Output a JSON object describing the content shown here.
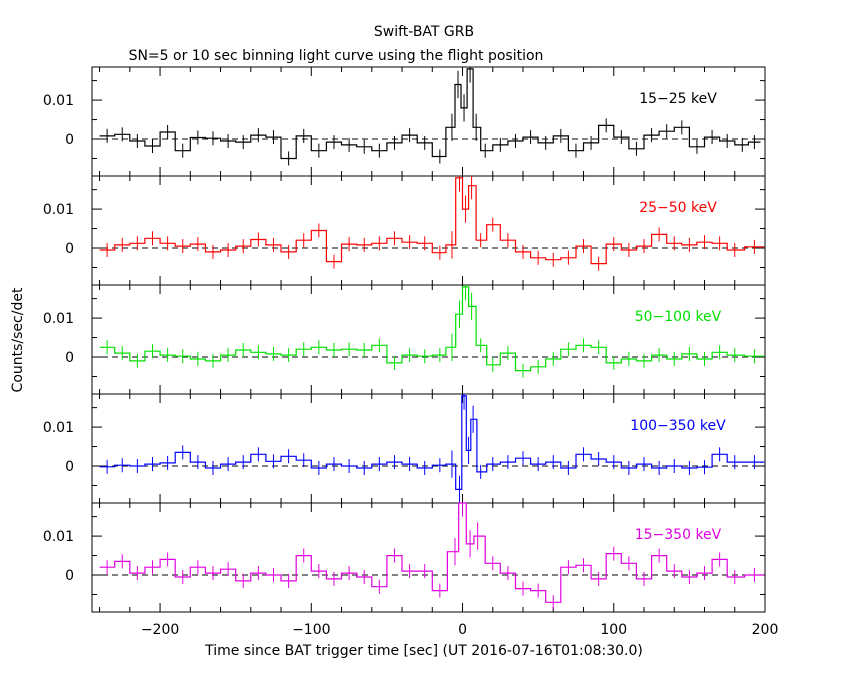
{
  "header": {
    "title": "Swift-BAT GRB",
    "subtitle": "SN=5 or 10 sec binning light curve using the flight position"
  },
  "chart_data": {
    "type": "line",
    "style": "step",
    "title": "Swift-BAT GRB",
    "subtitle": "SN=5 or 10 sec binning light curve using the flight position",
    "xlabel": "Time since BAT trigger time [sec] (UT 2016-07-16T01:08:30.0)",
    "ylabel": "Counts/sec/det",
    "xlim": [
      -245,
      200
    ],
    "ylim": [
      -0.0095,
      0.0185
    ],
    "x_ticks": [
      -200,
      -100,
      0,
      100,
      200
    ],
    "x_tick_labels": [
      "−200",
      "−100",
      "0",
      "100",
      "200"
    ],
    "y_ticks": [
      0,
      0.01
    ],
    "y_tick_labels": [
      "0",
      "0.01"
    ],
    "grid": false,
    "zero_line": "dashed",
    "panels": [
      {
        "name": "15−25 keV",
        "color": "#000000",
        "points": [
          {
            "x": -235,
            "y": 0.0008
          },
          {
            "x": -225,
            "y": 0.0012
          },
          {
            "x": -215,
            "y": -0.0005
          },
          {
            "x": -205,
            "y": -0.0018
          },
          {
            "x": -195,
            "y": 0.0018
          },
          {
            "x": -185,
            "y": -0.003
          },
          {
            "x": -175,
            "y": 0.0004
          },
          {
            "x": -165,
            "y": 0.0002
          },
          {
            "x": -155,
            "y": -0.0005
          },
          {
            "x": -145,
            "y": -0.0008
          },
          {
            "x": -135,
            "y": 0.001
          },
          {
            "x": -125,
            "y": 0.0005
          },
          {
            "x": -115,
            "y": -0.005
          },
          {
            "x": -105,
            "y": 0.0008
          },
          {
            "x": -95,
            "y": -0.003
          },
          {
            "x": -85,
            "y": -0.0008
          },
          {
            "x": -75,
            "y": -0.0015
          },
          {
            "x": -65,
            "y": -0.002
          },
          {
            "x": -55,
            "y": -0.003
          },
          {
            "x": -45,
            "y": -0.001
          },
          {
            "x": -35,
            "y": 0.001
          },
          {
            "x": -25,
            "y": -0.001
          },
          {
            "x": -15,
            "y": -0.0045
          },
          {
            "x": -7,
            "y": 0.003
          },
          {
            "x": -3,
            "y": 0.014
          },
          {
            "x": 1,
            "y": 0.008
          },
          {
            "x": 5,
            "y": 0.018
          },
          {
            "x": 9,
            "y": 0.003
          },
          {
            "x": 15,
            "y": -0.003
          },
          {
            "x": 25,
            "y": -0.0015
          },
          {
            "x": 35,
            "y": -0.0005
          },
          {
            "x": 45,
            "y": 0.0005
          },
          {
            "x": 55,
            "y": -0.001
          },
          {
            "x": 65,
            "y": 0.0008
          },
          {
            "x": 75,
            "y": -0.003
          },
          {
            "x": 85,
            "y": -0.001
          },
          {
            "x": 95,
            "y": 0.0035
          },
          {
            "x": 105,
            "y": 0.0005
          },
          {
            "x": 115,
            "y": -0.0025
          },
          {
            "x": 125,
            "y": 0.001
          },
          {
            "x": 135,
            "y": 0.002
          },
          {
            "x": 145,
            "y": 0.003
          },
          {
            "x": 155,
            "y": -0.002
          },
          {
            "x": 165,
            "y": 0.0005
          },
          {
            "x": 175,
            "y": -0.0005
          },
          {
            "x": 185,
            "y": -0.0015
          },
          {
            "x": 193,
            "y": -0.0008
          }
        ]
      },
      {
        "name": "25−50 keV",
        "color": "#ff0000",
        "points": [
          {
            "x": -235,
            "y": -0.0005
          },
          {
            "x": -225,
            "y": 0.0008
          },
          {
            "x": -215,
            "y": 0.0012
          },
          {
            "x": -205,
            "y": 0.0025
          },
          {
            "x": -195,
            "y": 0.0012
          },
          {
            "x": -185,
            "y": 0.0005
          },
          {
            "x": -175,
            "y": 0.001
          },
          {
            "x": -165,
            "y": -0.001
          },
          {
            "x": -155,
            "y": -0.0005
          },
          {
            "x": -145,
            "y": 0.0005
          },
          {
            "x": -135,
            "y": 0.0022
          },
          {
            "x": -125,
            "y": 0.0008
          },
          {
            "x": -115,
            "y": -0.001
          },
          {
            "x": -105,
            "y": 0.002
          },
          {
            "x": -95,
            "y": 0.0045
          },
          {
            "x": -85,
            "y": -0.0035
          },
          {
            "x": -75,
            "y": 0.001
          },
          {
            "x": -65,
            "y": 0.0008
          },
          {
            "x": -55,
            "y": 0.0012
          },
          {
            "x": -45,
            "y": 0.0025
          },
          {
            "x": -35,
            "y": 0.0015
          },
          {
            "x": -25,
            "y": 0.0012
          },
          {
            "x": -15,
            "y": -0.0012
          },
          {
            "x": -7,
            "y": 0.0008
          },
          {
            "x": -2,
            "y": 0.018
          },
          {
            "x": 2,
            "y": 0.01
          },
          {
            "x": 6,
            "y": 0.016
          },
          {
            "x": 12,
            "y": 0.002
          },
          {
            "x": 20,
            "y": 0.006
          },
          {
            "x": 30,
            "y": 0.002
          },
          {
            "x": 40,
            "y": -0.001
          },
          {
            "x": 50,
            "y": -0.0025
          },
          {
            "x": 60,
            "y": -0.003
          },
          {
            "x": 70,
            "y": -0.0025
          },
          {
            "x": 80,
            "y": 0.0005
          },
          {
            "x": 90,
            "y": -0.004
          },
          {
            "x": 100,
            "y": 0.001
          },
          {
            "x": 110,
            "y": -0.0005
          },
          {
            "x": 120,
            "y": 0.0005
          },
          {
            "x": 130,
            "y": 0.0035
          },
          {
            "x": 140,
            "y": 0.0012
          },
          {
            "x": 150,
            "y": 0.0008
          },
          {
            "x": 160,
            "y": 0.0015
          },
          {
            "x": 170,
            "y": 0.0012
          },
          {
            "x": 180,
            "y": -0.0005
          },
          {
            "x": 193,
            "y": 0.0003
          }
        ]
      },
      {
        "name": "50−100 keV",
        "color": "#00e000",
        "points": [
          {
            "x": -235,
            "y": 0.0025
          },
          {
            "x": -225,
            "y": 0.001
          },
          {
            "x": -215,
            "y": -0.001
          },
          {
            "x": -205,
            "y": 0.0015
          },
          {
            "x": -195,
            "y": 0.0005
          },
          {
            "x": -185,
            "y": 0.0002
          },
          {
            "x": -175,
            "y": -0.0005
          },
          {
            "x": -165,
            "y": -0.001
          },
          {
            "x": -155,
            "y": 0.0005
          },
          {
            "x": -145,
            "y": 0.0018
          },
          {
            "x": -135,
            "y": 0.0012
          },
          {
            "x": -125,
            "y": 0.0008
          },
          {
            "x": -115,
            "y": 0.0005
          },
          {
            "x": -105,
            "y": 0.002
          },
          {
            "x": -95,
            "y": 0.0025
          },
          {
            "x": -85,
            "y": 0.0018
          },
          {
            "x": -75,
            "y": 0.002
          },
          {
            "x": -65,
            "y": 0.0018
          },
          {
            "x": -55,
            "y": 0.003
          },
          {
            "x": -45,
            "y": -0.0015
          },
          {
            "x": -35,
            "y": 0.0005
          },
          {
            "x": -25,
            "y": 0.0002
          },
          {
            "x": -15,
            "y": 0.0005
          },
          {
            "x": -7,
            "y": 0.0025
          },
          {
            "x": -2,
            "y": 0.011
          },
          {
            "x": 2,
            "y": 0.018
          },
          {
            "x": 6,
            "y": 0.013
          },
          {
            "x": 12,
            "y": 0.003
          },
          {
            "x": 20,
            "y": -0.002
          },
          {
            "x": 30,
            "y": 0.001
          },
          {
            "x": 40,
            "y": -0.0035
          },
          {
            "x": 50,
            "y": -0.0025
          },
          {
            "x": 60,
            "y": -0.0005
          },
          {
            "x": 70,
            "y": 0.002
          },
          {
            "x": 80,
            "y": 0.003
          },
          {
            "x": 90,
            "y": 0.0025
          },
          {
            "x": 100,
            "y": -0.0015
          },
          {
            "x": 110,
            "y": -0.0005
          },
          {
            "x": 120,
            "y": -0.001
          },
          {
            "x": 130,
            "y": 0.0005
          },
          {
            "x": 140,
            "y": -0.0005
          },
          {
            "x": 150,
            "y": 0.0008
          },
          {
            "x": 160,
            "y": -0.0005
          },
          {
            "x": 170,
            "y": 0.0012
          },
          {
            "x": 180,
            "y": 0.0005
          },
          {
            "x": 193,
            "y": 0.0002
          }
        ]
      },
      {
        "name": "100−350 keV",
        "color": "#0000ff",
        "points": [
          {
            "x": -235,
            "y": -0.0002
          },
          {
            "x": -225,
            "y": 0.0002
          },
          {
            "x": -215,
            "y": 0.0
          },
          {
            "x": -205,
            "y": 0.0005
          },
          {
            "x": -195,
            "y": 0.0008
          },
          {
            "x": -185,
            "y": 0.0035
          },
          {
            "x": -175,
            "y": 0.001
          },
          {
            "x": -165,
            "y": -0.0005
          },
          {
            "x": -155,
            "y": 0.0005
          },
          {
            "x": -145,
            "y": 0.001
          },
          {
            "x": -135,
            "y": 0.003
          },
          {
            "x": -125,
            "y": 0.0012
          },
          {
            "x": -115,
            "y": 0.0025
          },
          {
            "x": -105,
            "y": 0.0015
          },
          {
            "x": -95,
            "y": -0.0005
          },
          {
            "x": -85,
            "y": 0.0005
          },
          {
            "x": -75,
            "y": 0.0
          },
          {
            "x": -65,
            "y": -0.0005
          },
          {
            "x": -55,
            "y": 0.0005
          },
          {
            "x": -45,
            "y": 0.001
          },
          {
            "x": -35,
            "y": 0.0005
          },
          {
            "x": -25,
            "y": -0.0005
          },
          {
            "x": -15,
            "y": 0.0002
          },
          {
            "x": -7,
            "y": 0.0005
          },
          {
            "x": -2,
            "y": -0.006
          },
          {
            "x": 1,
            "y": 0.018
          },
          {
            "x": 4,
            "y": 0.004
          },
          {
            "x": 7,
            "y": 0.012
          },
          {
            "x": 12,
            "y": -0.0015
          },
          {
            "x": 20,
            "y": 0.0005
          },
          {
            "x": 30,
            "y": 0.001
          },
          {
            "x": 40,
            "y": 0.002
          },
          {
            "x": 50,
            "y": 0.0005
          },
          {
            "x": 60,
            "y": 0.001
          },
          {
            "x": 70,
            "y": -0.0005
          },
          {
            "x": 80,
            "y": 0.003
          },
          {
            "x": 90,
            "y": 0.0018
          },
          {
            "x": 100,
            "y": 0.001
          },
          {
            "x": 110,
            "y": -0.0005
          },
          {
            "x": 120,
            "y": 0.0005
          },
          {
            "x": 130,
            "y": -0.0005
          },
          {
            "x": 140,
            "y": 0.0
          },
          {
            "x": 150,
            "y": -0.0005
          },
          {
            "x": 160,
            "y": -0.0003
          },
          {
            "x": 170,
            "y": 0.003
          },
          {
            "x": 180,
            "y": 0.001
          },
          {
            "x": 193,
            "y": 0.001
          }
        ]
      },
      {
        "name": "15−350 keV",
        "color": "#e000e0",
        "points": [
          {
            "x": -235,
            "y": 0.002
          },
          {
            "x": -225,
            "y": 0.0035
          },
          {
            "x": -215,
            "y": 0.0005
          },
          {
            "x": -205,
            "y": 0.002
          },
          {
            "x": -195,
            "y": 0.004
          },
          {
            "x": -185,
            "y": -0.0005
          },
          {
            "x": -175,
            "y": 0.002
          },
          {
            "x": -165,
            "y": 0.0005
          },
          {
            "x": -155,
            "y": 0.0015
          },
          {
            "x": -145,
            "y": -0.0015
          },
          {
            "x": -135,
            "y": 0.0005
          },
          {
            "x": -125,
            "y": 0.0
          },
          {
            "x": -115,
            "y": -0.0015
          },
          {
            "x": -105,
            "y": 0.005
          },
          {
            "x": -95,
            "y": 0.001
          },
          {
            "x": -85,
            "y": -0.001
          },
          {
            "x": -75,
            "y": 0.0005
          },
          {
            "x": -65,
            "y": -0.0005
          },
          {
            "x": -55,
            "y": -0.003
          },
          {
            "x": -45,
            "y": 0.005
          },
          {
            "x": -35,
            "y": 0.001
          },
          {
            "x": -25,
            "y": 0.001
          },
          {
            "x": -15,
            "y": -0.004
          },
          {
            "x": -5,
            "y": 0.006
          },
          {
            "x": 0,
            "y": 0.0185
          },
          {
            "x": 5,
            "y": 0.008
          },
          {
            "x": 10,
            "y": 0.01
          },
          {
            "x": 20,
            "y": 0.003
          },
          {
            "x": 30,
            "y": 0.0005
          },
          {
            "x": 40,
            "y": -0.0035
          },
          {
            "x": 50,
            "y": -0.004
          },
          {
            "x": 60,
            "y": -0.007
          },
          {
            "x": 70,
            "y": 0.002
          },
          {
            "x": 80,
            "y": 0.0025
          },
          {
            "x": 90,
            "y": -0.001
          },
          {
            "x": 100,
            "y": 0.0055
          },
          {
            "x": 110,
            "y": 0.003
          },
          {
            "x": 120,
            "y": -0.001
          },
          {
            "x": 130,
            "y": 0.005
          },
          {
            "x": 140,
            "y": 0.001
          },
          {
            "x": 150,
            "y": -0.0005
          },
          {
            "x": 160,
            "y": 0.0005
          },
          {
            "x": 170,
            "y": 0.004
          },
          {
            "x": 180,
            "y": -0.0005
          },
          {
            "x": 193,
            "y": 0.0
          }
        ]
      }
    ]
  }
}
